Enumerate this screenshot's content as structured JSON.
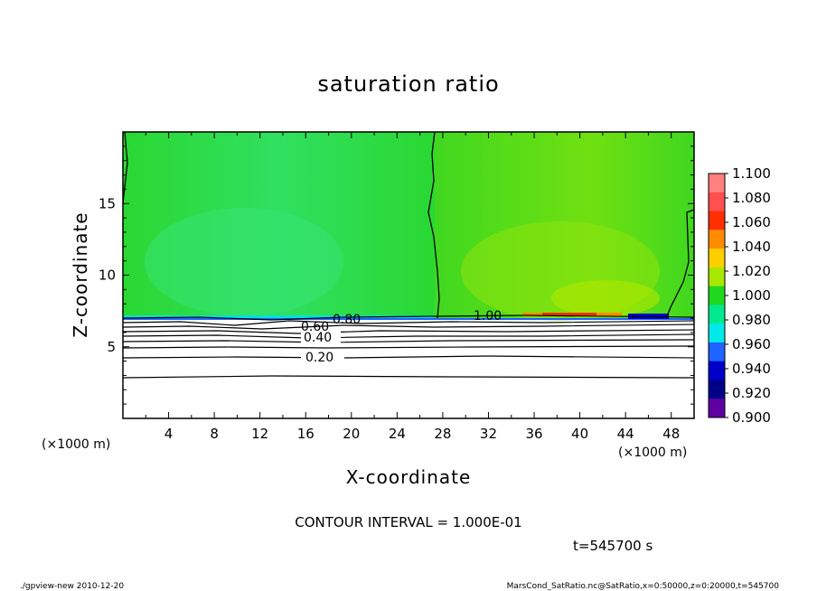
{
  "chart_data": {
    "type": "heatmap",
    "title": "saturation ratio",
    "xlabel": "X-coordinate",
    "ylabel": "Z-coordinate",
    "x_unit": "(×1000 m)",
    "y_unit": "(×1000 m)",
    "xlim": [
      0,
      50
    ],
    "ylim": [
      0,
      20
    ],
    "x_ticks": [
      "4",
      "8",
      "12",
      "16",
      "20",
      "24",
      "28",
      "32",
      "36",
      "40",
      "44",
      "48"
    ],
    "y_ticks": [
      "5",
      "10",
      "15"
    ],
    "contour_labels": [
      "0.20",
      "0.40",
      "0.60",
      "0.80",
      "1.00"
    ],
    "colorbar": {
      "levels": [
        "1.100",
        "1.080",
        "1.060",
        "1.040",
        "1.020",
        "1.000",
        "0.980",
        "0.960",
        "0.940",
        "0.920",
        "0.900"
      ],
      "colors": [
        "#ff8080",
        "#ff5050",
        "#ff3000",
        "#ff8c00",
        "#ffd000",
        "#a8e800",
        "#20d820",
        "#00e890",
        "#00e8e8",
        "#1e64ff",
        "#0000c8",
        "#000088",
        "#6000a0"
      ]
    },
    "contour_interval": "CONTOUR INTERVAL = 1.000E-01",
    "time": "t=545700 s"
  },
  "footer": {
    "left": "./gpview-new   2010-12-20",
    "right": "MarsCond_SatRatio.nc@SatRatio,x=0:50000,z=0:20000,t=545700"
  }
}
